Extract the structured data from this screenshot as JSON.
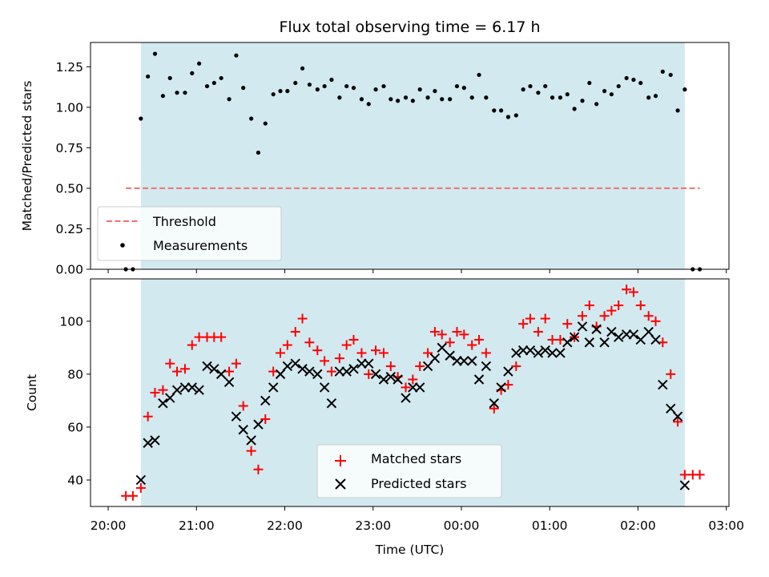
{
  "chart_data": [
    {
      "type": "scatter",
      "title": "Flux total observing time = 6.17 h",
      "xlabel": "",
      "ylabel": "Matched/Predicted stars",
      "ylim": [
        0,
        1.4
      ],
      "yticks": [
        "0.00",
        "0.25",
        "0.50",
        "0.75",
        "1.00",
        "1.25"
      ],
      "xlim_hours": [
        19.8,
        27.03
      ],
      "shaded_span_hours": [
        20.37,
        26.53
      ],
      "shade_color": "#d3e9f0",
      "legend_position": "lower-left",
      "threshold": {
        "name": "Threshold",
        "value": 0.5,
        "x_range_hours": [
          20.2,
          26.7
        ],
        "color": "#f07070"
      },
      "series": [
        {
          "name": "Measurements",
          "color": "#000000",
          "marker": "dot",
          "x": [
            20.2,
            20.28,
            20.37,
            20.45,
            20.53,
            20.62,
            20.7,
            20.78,
            20.87,
            20.95,
            21.03,
            21.12,
            21.2,
            21.28,
            21.37,
            21.45,
            21.53,
            21.62,
            21.7,
            21.78,
            21.87,
            21.95,
            22.03,
            22.12,
            22.2,
            22.28,
            22.37,
            22.45,
            22.53,
            22.62,
            22.7,
            22.78,
            22.87,
            22.95,
            23.03,
            23.12,
            23.2,
            23.28,
            23.37,
            23.45,
            23.53,
            23.62,
            23.7,
            23.78,
            23.87,
            23.95,
            24.03,
            24.12,
            24.2,
            24.28,
            24.37,
            24.45,
            24.53,
            24.62,
            24.7,
            24.78,
            24.87,
            24.95,
            25.03,
            25.12,
            25.2,
            25.28,
            25.37,
            25.45,
            25.53,
            25.62,
            25.7,
            25.78,
            25.87,
            25.95,
            26.03,
            26.12,
            26.2,
            26.28,
            26.37,
            26.45,
            26.53,
            26.62,
            26.7
          ],
          "y": [
            0,
            0,
            0.93,
            1.19,
            1.33,
            1.07,
            1.18,
            1.09,
            1.09,
            1.21,
            1.27,
            1.13,
            1.15,
            1.18,
            1.05,
            1.32,
            1.12,
            0.93,
            0.72,
            0.9,
            1.08,
            1.1,
            1.1,
            1.15,
            1.24,
            1.14,
            1.11,
            1.13,
            1.17,
            1.06,
            1.13,
            1.12,
            1.05,
            1.02,
            1.11,
            1.13,
            1.05,
            1.04,
            1.06,
            1.04,
            1.11,
            1.06,
            1.1,
            1.05,
            1.05,
            1.13,
            1.12,
            1.06,
            1.2,
            1.06,
            0.98,
            0.98,
            0.94,
            0.95,
            1.11,
            1.13,
            1.09,
            1.13,
            1.06,
            1.06,
            1.08,
            0.99,
            1.04,
            1.15,
            1.02,
            1.1,
            1.08,
            1.13,
            1.18,
            1.17,
            1.15,
            1.06,
            1.07,
            1.22,
            1.2,
            0.98,
            1.11,
            0,
            0
          ]
        }
      ]
    },
    {
      "type": "scatter",
      "title": "",
      "xlabel": "Time (UTC)",
      "ylabel": "Count",
      "ylim": [
        30,
        116
      ],
      "yticks": [
        "40",
        "60",
        "80",
        "100"
      ],
      "xlim_hours": [
        19.8,
        27.03
      ],
      "xticks": [
        "20:00",
        "21:00",
        "22:00",
        "23:00",
        "00:00",
        "01:00",
        "02:00",
        "03:00"
      ],
      "shaded_span_hours": [
        20.37,
        26.53
      ],
      "shade_color": "#d3e9f0",
      "legend_position": "lower-center",
      "series": [
        {
          "name": "Matched stars",
          "color": "#ff0000",
          "marker": "plus",
          "x": [
            20.2,
            20.28,
            20.37,
            20.45,
            20.53,
            20.62,
            20.7,
            20.78,
            20.87,
            20.95,
            21.03,
            21.12,
            21.2,
            21.28,
            21.37,
            21.45,
            21.53,
            21.62,
            21.7,
            21.78,
            21.87,
            21.95,
            22.03,
            22.12,
            22.2,
            22.28,
            22.37,
            22.45,
            22.53,
            22.62,
            22.7,
            22.78,
            22.87,
            22.95,
            23.03,
            23.12,
            23.2,
            23.28,
            23.37,
            23.45,
            23.53,
            23.62,
            23.7,
            23.78,
            23.87,
            23.95,
            24.03,
            24.12,
            24.2,
            24.28,
            24.37,
            24.45,
            24.53,
            24.62,
            24.7,
            24.78,
            24.87,
            24.95,
            25.03,
            25.12,
            25.2,
            25.28,
            25.37,
            25.45,
            25.53,
            25.62,
            25.7,
            25.78,
            25.87,
            25.95,
            26.03,
            26.12,
            26.2,
            26.28,
            26.37,
            26.45,
            26.53,
            26.62,
            26.7
          ],
          "y": [
            34,
            34,
            37,
            64,
            73,
            74,
            84,
            81,
            82,
            91,
            94,
            94,
            94,
            94,
            81,
            84,
            68,
            51,
            44,
            63,
            81,
            88,
            91,
            96,
            101,
            92,
            89,
            85,
            81,
            86,
            91,
            93,
            88,
            80,
            89,
            88,
            83,
            79,
            75,
            78,
            83,
            88,
            96,
            95,
            92,
            96,
            95,
            91,
            93,
            88,
            67,
            74,
            76,
            83,
            99,
            101,
            96,
            101,
            93,
            93,
            99,
            94,
            102,
            106,
            98,
            102,
            104,
            106,
            112,
            111,
            106,
            102,
            100,
            92,
            80,
            62,
            42,
            42,
            42
          ]
        },
        {
          "name": "Predicted stars",
          "color": "#000000",
          "marker": "x",
          "x": [
            20.37,
            20.45,
            20.53,
            20.62,
            20.7,
            20.78,
            20.87,
            20.95,
            21.03,
            21.12,
            21.2,
            21.28,
            21.37,
            21.45,
            21.53,
            21.62,
            21.7,
            21.78,
            21.87,
            21.95,
            22.03,
            22.12,
            22.2,
            22.28,
            22.37,
            22.45,
            22.53,
            22.62,
            22.7,
            22.78,
            22.87,
            22.95,
            23.03,
            23.12,
            23.2,
            23.28,
            23.37,
            23.45,
            23.53,
            23.62,
            23.7,
            23.78,
            23.87,
            23.95,
            24.03,
            24.12,
            24.2,
            24.28,
            24.37,
            24.45,
            24.53,
            24.62,
            24.7,
            24.78,
            24.87,
            24.95,
            25.03,
            25.12,
            25.2,
            25.28,
            25.37,
            25.45,
            25.53,
            25.62,
            25.7,
            25.78,
            25.87,
            25.95,
            26.03,
            26.12,
            26.2,
            26.28,
            26.37,
            26.45,
            26.53
          ],
          "y": [
            40,
            54,
            55,
            69,
            71,
            74,
            75,
            75,
            74,
            83,
            82,
            80,
            77,
            64,
            59,
            55,
            61,
            70,
            75,
            80,
            83,
            84,
            82,
            81,
            80,
            75,
            69,
            81,
            81,
            82,
            84,
            84,
            80,
            78,
            79,
            78,
            71,
            75,
            75,
            83,
            86,
            90,
            87,
            85,
            85,
            85,
            78,
            83,
            69,
            75,
            81,
            88,
            89,
            89,
            88,
            89,
            88,
            88,
            92,
            94,
            98,
            92,
            97,
            92,
            96,
            94,
            95,
            95,
            93,
            96,
            93,
            76,
            67,
            64,
            38
          ]
        }
      ]
    }
  ]
}
